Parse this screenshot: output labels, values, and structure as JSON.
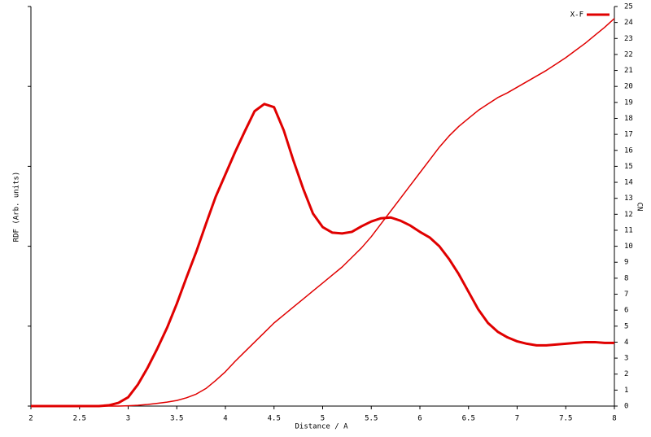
{
  "chart_data": {
    "type": "line",
    "xlabel": "Distance / A",
    "ylabel": "RDF (Arb. units)",
    "y2label": "CN",
    "x": [
      2.0,
      2.1,
      2.2,
      2.3,
      2.4,
      2.5,
      2.6,
      2.7,
      2.8,
      2.9,
      3.0,
      3.1,
      3.2,
      3.3,
      3.4,
      3.5,
      3.6,
      3.7,
      3.8,
      3.9,
      4.0,
      4.1,
      4.2,
      4.3,
      4.4,
      4.5,
      4.6,
      4.7,
      4.8,
      4.9,
      5.0,
      5.1,
      5.2,
      5.3,
      5.4,
      5.5,
      5.6,
      5.7,
      5.8,
      5.9,
      6.0,
      6.1,
      6.2,
      6.3,
      6.4,
      6.5,
      6.6,
      6.7,
      6.8,
      6.9,
      7.0,
      7.1,
      7.2,
      7.3,
      7.4,
      7.5,
      7.6,
      7.7,
      7.8,
      7.9,
      8.0
    ],
    "series": [
      {
        "name": "X-F",
        "color": "#e00000",
        "line_width": 3,
        "values": [
          0,
          0,
          0,
          0,
          0,
          0,
          0,
          0,
          0.01,
          0.04,
          0.11,
          0.27,
          0.48,
          0.72,
          0.98,
          1.28,
          1.61,
          1.93,
          2.28,
          2.62,
          2.9,
          3.18,
          3.44,
          3.69,
          3.78,
          3.74,
          3.45,
          3.07,
          2.72,
          2.41,
          2.24,
          2.17,
          2.16,
          2.18,
          2.25,
          2.31,
          2.35,
          2.36,
          2.32,
          2.26,
          2.18,
          2.11,
          2.0,
          1.84,
          1.65,
          1.43,
          1.21,
          1.04,
          0.93,
          0.86,
          0.81,
          0.78,
          0.76,
          0.76,
          0.77,
          0.78,
          0.79,
          0.8,
          0.8,
          0.79,
          0.79
        ]
      },
      {
        "color": "#e00000",
        "line_width": 1.5,
        "axis": "y2",
        "values": [
          0,
          0,
          0,
          0,
          0,
          0,
          0,
          0,
          0,
          0,
          0.02,
          0.05,
          0.1,
          0.17,
          0.25,
          0.35,
          0.52,
          0.75,
          1.1,
          1.6,
          2.15,
          2.8,
          3.4,
          4.0,
          4.6,
          5.2,
          5.7,
          6.2,
          6.7,
          7.2,
          7.7,
          8.2,
          8.7,
          9.3,
          9.9,
          10.6,
          11.4,
          12.2,
          13.0,
          13.8,
          14.6,
          15.4,
          16.2,
          16.9,
          17.5,
          18.0,
          18.5,
          18.9,
          19.3,
          19.6,
          19.95,
          20.3,
          20.65,
          21.0,
          21.4,
          21.8,
          22.25,
          22.7,
          23.2,
          23.7,
          24.25
        ]
      }
    ],
    "xlim": [
      2,
      8
    ],
    "xticks": [
      2,
      2.5,
      3,
      3.5,
      4,
      4.5,
      5,
      5.5,
      6,
      6.5,
      7,
      7.5,
      8
    ],
    "ylim": [
      0,
      5
    ],
    "yticks": [
      0,
      1,
      2,
      3,
      4,
      5
    ],
    "ytick_labels": false,
    "y2lim": [
      0,
      25
    ],
    "y2ticks": [
      0,
      1,
      2,
      3,
      4,
      5,
      6,
      7,
      8,
      9,
      10,
      11,
      12,
      13,
      14,
      15,
      16,
      17,
      18,
      19,
      20,
      21,
      22,
      23,
      24,
      25
    ],
    "legend": "upper right"
  }
}
